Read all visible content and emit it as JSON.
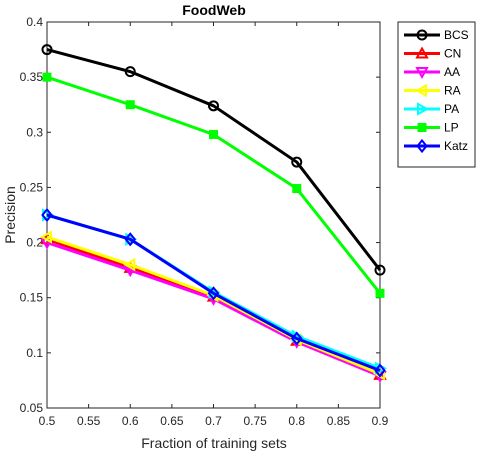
{
  "chart_data": {
    "type": "line",
    "title": "FoodWeb",
    "xlabel": "Fraction of training sets",
    "ylabel": "Precision",
    "xlim": [
      0.5,
      0.9
    ],
    "ylim": [
      0.05,
      0.4
    ],
    "x_ticks": [
      "0.5",
      "0.55",
      "0.6",
      "0.65",
      "0.7",
      "0.75",
      "0.8",
      "0.85",
      "0.9"
    ],
    "y_ticks": [
      "0.05",
      "0.1",
      "0.15",
      "0.2",
      "0.25",
      "0.3",
      "0.35",
      "0.4"
    ],
    "x": [
      0.5,
      0.6,
      0.7,
      0.8,
      0.9
    ],
    "grid": false,
    "legend_position": "top-right",
    "series": [
      {
        "name": "BCS",
        "color": "#000000",
        "marker": "circle",
        "values": [
          0.375,
          0.355,
          0.324,
          0.273,
          0.175
        ]
      },
      {
        "name": "CN",
        "color": "#ff0000",
        "marker": "triangle-up",
        "values": [
          0.203,
          0.177,
          0.151,
          0.111,
          0.08
        ]
      },
      {
        "name": "AA",
        "color": "#ff00ff",
        "marker": "triangle-down",
        "values": [
          0.2,
          0.175,
          0.149,
          0.11,
          0.079
        ]
      },
      {
        "name": "RA",
        "color": "#ffff00",
        "marker": "triangle-left",
        "values": [
          0.205,
          0.18,
          0.152,
          0.112,
          0.081
        ]
      },
      {
        "name": "PA",
        "color": "#00ffff",
        "marker": "triangle-right",
        "values": [
          0.225,
          0.203,
          0.155,
          0.115,
          0.086
        ]
      },
      {
        "name": "LP",
        "color": "#00ff00",
        "marker": "square",
        "values": [
          0.35,
          0.325,
          0.298,
          0.249,
          0.154
        ]
      },
      {
        "name": "Katz",
        "color": "#0000ff",
        "marker": "diamond",
        "values": [
          0.225,
          0.203,
          0.154,
          0.113,
          0.084
        ]
      }
    ]
  }
}
